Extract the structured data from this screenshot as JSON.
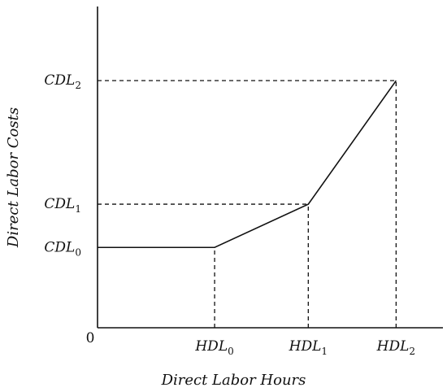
{
  "chart_data": {
    "type": "line",
    "title": "",
    "xlabel": "Direct Labor Hours",
    "ylabel": "Direct Labor Costs",
    "origin_label": "0",
    "x_ticks": [
      {
        "label": "HDL",
        "sub": "0",
        "value": 1.0
      },
      {
        "label": "HDL",
        "sub": "1",
        "value": 1.8
      },
      {
        "label": "HDL",
        "sub": "2",
        "value": 2.55
      }
    ],
    "y_ticks": [
      {
        "label": "CDL",
        "sub": "0",
        "value": 0.65
      },
      {
        "label": "CDL",
        "sub": "1",
        "value": 1.0
      },
      {
        "label": "CDL",
        "sub": "2",
        "value": 2.0
      }
    ],
    "xlim": [
      0,
      2.95
    ],
    "ylim": [
      0,
      2.6
    ],
    "series": [
      {
        "points": [
          [
            0,
            0.65
          ],
          [
            1.0,
            0.65
          ],
          [
            1.8,
            1.0
          ],
          [
            2.55,
            2.0
          ]
        ]
      }
    ],
    "guides": [
      {
        "from": [
          1.0,
          0
        ],
        "to": [
          1.0,
          0.65
        ]
      },
      {
        "from": [
          1.8,
          0
        ],
        "to": [
          1.8,
          1.0
        ]
      },
      {
        "from": [
          0,
          1.0
        ],
        "to": [
          1.8,
          1.0
        ]
      },
      {
        "from": [
          2.55,
          0
        ],
        "to": [
          2.55,
          2.0
        ]
      },
      {
        "from": [
          0,
          2.0
        ],
        "to": [
          2.55,
          2.0
        ]
      }
    ],
    "grid": false,
    "legend": "none"
  }
}
